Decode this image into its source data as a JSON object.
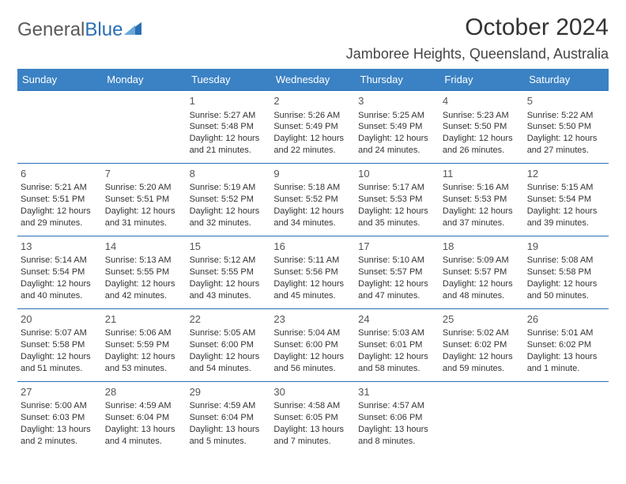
{
  "logo": {
    "word1": "General",
    "word2": "Blue"
  },
  "title": "October 2024",
  "location": "Jamboree Heights, Queensland, Australia",
  "colors": {
    "header_bg": "#3b82c4",
    "header_text": "#ffffff",
    "border": "#2a6fb5",
    "body_text": "#333333",
    "logo_gray": "#5a5a5a",
    "logo_blue": "#2a6fb5"
  },
  "day_headers": [
    "Sunday",
    "Monday",
    "Tuesday",
    "Wednesday",
    "Thursday",
    "Friday",
    "Saturday"
  ],
  "weeks": [
    [
      null,
      null,
      {
        "n": "1",
        "sr": "5:27 AM",
        "ss": "5:48 PM",
        "dl": "12 hours and 21 minutes."
      },
      {
        "n": "2",
        "sr": "5:26 AM",
        "ss": "5:49 PM",
        "dl": "12 hours and 22 minutes."
      },
      {
        "n": "3",
        "sr": "5:25 AM",
        "ss": "5:49 PM",
        "dl": "12 hours and 24 minutes."
      },
      {
        "n": "4",
        "sr": "5:23 AM",
        "ss": "5:50 PM",
        "dl": "12 hours and 26 minutes."
      },
      {
        "n": "5",
        "sr": "5:22 AM",
        "ss": "5:50 PM",
        "dl": "12 hours and 27 minutes."
      }
    ],
    [
      {
        "n": "6",
        "sr": "5:21 AM",
        "ss": "5:51 PM",
        "dl": "12 hours and 29 minutes."
      },
      {
        "n": "7",
        "sr": "5:20 AM",
        "ss": "5:51 PM",
        "dl": "12 hours and 31 minutes."
      },
      {
        "n": "8",
        "sr": "5:19 AM",
        "ss": "5:52 PM",
        "dl": "12 hours and 32 minutes."
      },
      {
        "n": "9",
        "sr": "5:18 AM",
        "ss": "5:52 PM",
        "dl": "12 hours and 34 minutes."
      },
      {
        "n": "10",
        "sr": "5:17 AM",
        "ss": "5:53 PM",
        "dl": "12 hours and 35 minutes."
      },
      {
        "n": "11",
        "sr": "5:16 AM",
        "ss": "5:53 PM",
        "dl": "12 hours and 37 minutes."
      },
      {
        "n": "12",
        "sr": "5:15 AM",
        "ss": "5:54 PM",
        "dl": "12 hours and 39 minutes."
      }
    ],
    [
      {
        "n": "13",
        "sr": "5:14 AM",
        "ss": "5:54 PM",
        "dl": "12 hours and 40 minutes."
      },
      {
        "n": "14",
        "sr": "5:13 AM",
        "ss": "5:55 PM",
        "dl": "12 hours and 42 minutes."
      },
      {
        "n": "15",
        "sr": "5:12 AM",
        "ss": "5:55 PM",
        "dl": "12 hours and 43 minutes."
      },
      {
        "n": "16",
        "sr": "5:11 AM",
        "ss": "5:56 PM",
        "dl": "12 hours and 45 minutes."
      },
      {
        "n": "17",
        "sr": "5:10 AM",
        "ss": "5:57 PM",
        "dl": "12 hours and 47 minutes."
      },
      {
        "n": "18",
        "sr": "5:09 AM",
        "ss": "5:57 PM",
        "dl": "12 hours and 48 minutes."
      },
      {
        "n": "19",
        "sr": "5:08 AM",
        "ss": "5:58 PM",
        "dl": "12 hours and 50 minutes."
      }
    ],
    [
      {
        "n": "20",
        "sr": "5:07 AM",
        "ss": "5:58 PM",
        "dl": "12 hours and 51 minutes."
      },
      {
        "n": "21",
        "sr": "5:06 AM",
        "ss": "5:59 PM",
        "dl": "12 hours and 53 minutes."
      },
      {
        "n": "22",
        "sr": "5:05 AM",
        "ss": "6:00 PM",
        "dl": "12 hours and 54 minutes."
      },
      {
        "n": "23",
        "sr": "5:04 AM",
        "ss": "6:00 PM",
        "dl": "12 hours and 56 minutes."
      },
      {
        "n": "24",
        "sr": "5:03 AM",
        "ss": "6:01 PM",
        "dl": "12 hours and 58 minutes."
      },
      {
        "n": "25",
        "sr": "5:02 AM",
        "ss": "6:02 PM",
        "dl": "12 hours and 59 minutes."
      },
      {
        "n": "26",
        "sr": "5:01 AM",
        "ss": "6:02 PM",
        "dl": "13 hours and 1 minute."
      }
    ],
    [
      {
        "n": "27",
        "sr": "5:00 AM",
        "ss": "6:03 PM",
        "dl": "13 hours and 2 minutes."
      },
      {
        "n": "28",
        "sr": "4:59 AM",
        "ss": "6:04 PM",
        "dl": "13 hours and 4 minutes."
      },
      {
        "n": "29",
        "sr": "4:59 AM",
        "ss": "6:04 PM",
        "dl": "13 hours and 5 minutes."
      },
      {
        "n": "30",
        "sr": "4:58 AM",
        "ss": "6:05 PM",
        "dl": "13 hours and 7 minutes."
      },
      {
        "n": "31",
        "sr": "4:57 AM",
        "ss": "6:06 PM",
        "dl": "13 hours and 8 minutes."
      },
      null,
      null
    ]
  ],
  "labels": {
    "sunrise": "Sunrise:",
    "sunset": "Sunset:",
    "daylight": "Daylight:"
  }
}
